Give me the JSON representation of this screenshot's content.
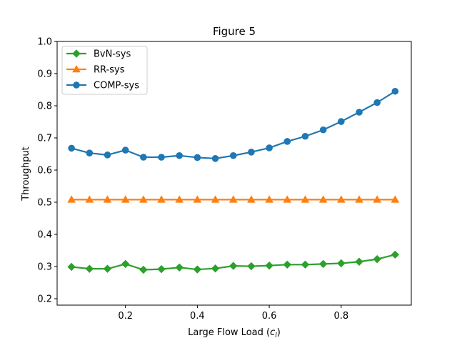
{
  "chart_data": {
    "type": "line",
    "title": "Figure 5",
    "xlabel_main": "Large Flow Load (",
    "xlabel_symbol": "c",
    "xlabel_subscript": "l",
    "xlabel_end": ")",
    "ylabel": "Throughput",
    "xlim": [
      0.01,
      0.995
    ],
    "ylim": [
      0.18,
      1.0
    ],
    "xticks": [
      0.2,
      0.4,
      0.6,
      0.8
    ],
    "xtick_labels": [
      "0.2",
      "0.4",
      "0.6",
      "0.8"
    ],
    "yticks": [
      0.2,
      0.3,
      0.4,
      0.5,
      0.6,
      0.7,
      0.8,
      0.9,
      1.0
    ],
    "ytick_labels": [
      "0.2",
      "0.3",
      "0.4",
      "0.5",
      "0.6",
      "0.7",
      "0.8",
      "0.9",
      "1.0"
    ],
    "x": [
      0.05,
      0.1,
      0.15,
      0.2,
      0.25,
      0.3,
      0.35,
      0.4,
      0.45,
      0.5,
      0.55,
      0.6,
      0.65,
      0.7,
      0.75,
      0.8,
      0.85,
      0.9,
      0.95
    ],
    "legend_position": "upper-left",
    "series": [
      {
        "name": "BvN-sys",
        "color": "#2ca02c",
        "marker": "diamond",
        "values": [
          0.299,
          0.293,
          0.293,
          0.308,
          0.29,
          0.292,
          0.297,
          0.291,
          0.294,
          0.302,
          0.301,
          0.303,
          0.306,
          0.306,
          0.308,
          0.31,
          0.315,
          0.323,
          0.337
        ]
      },
      {
        "name": "RR-sys",
        "color": "#ff7f0e",
        "marker": "triangle",
        "values": [
          0.508,
          0.508,
          0.508,
          0.508,
          0.508,
          0.508,
          0.508,
          0.508,
          0.508,
          0.508,
          0.508,
          0.508,
          0.508,
          0.508,
          0.508,
          0.508,
          0.508,
          0.508,
          0.508
        ]
      },
      {
        "name": "COMP-sys",
        "color": "#1f77b4",
        "marker": "circle",
        "values": [
          0.668,
          0.653,
          0.647,
          0.662,
          0.64,
          0.64,
          0.645,
          0.639,
          0.636,
          0.645,
          0.656,
          0.669,
          0.689,
          0.705,
          0.725,
          0.751,
          0.78,
          0.81,
          0.845
        ]
      }
    ]
  }
}
